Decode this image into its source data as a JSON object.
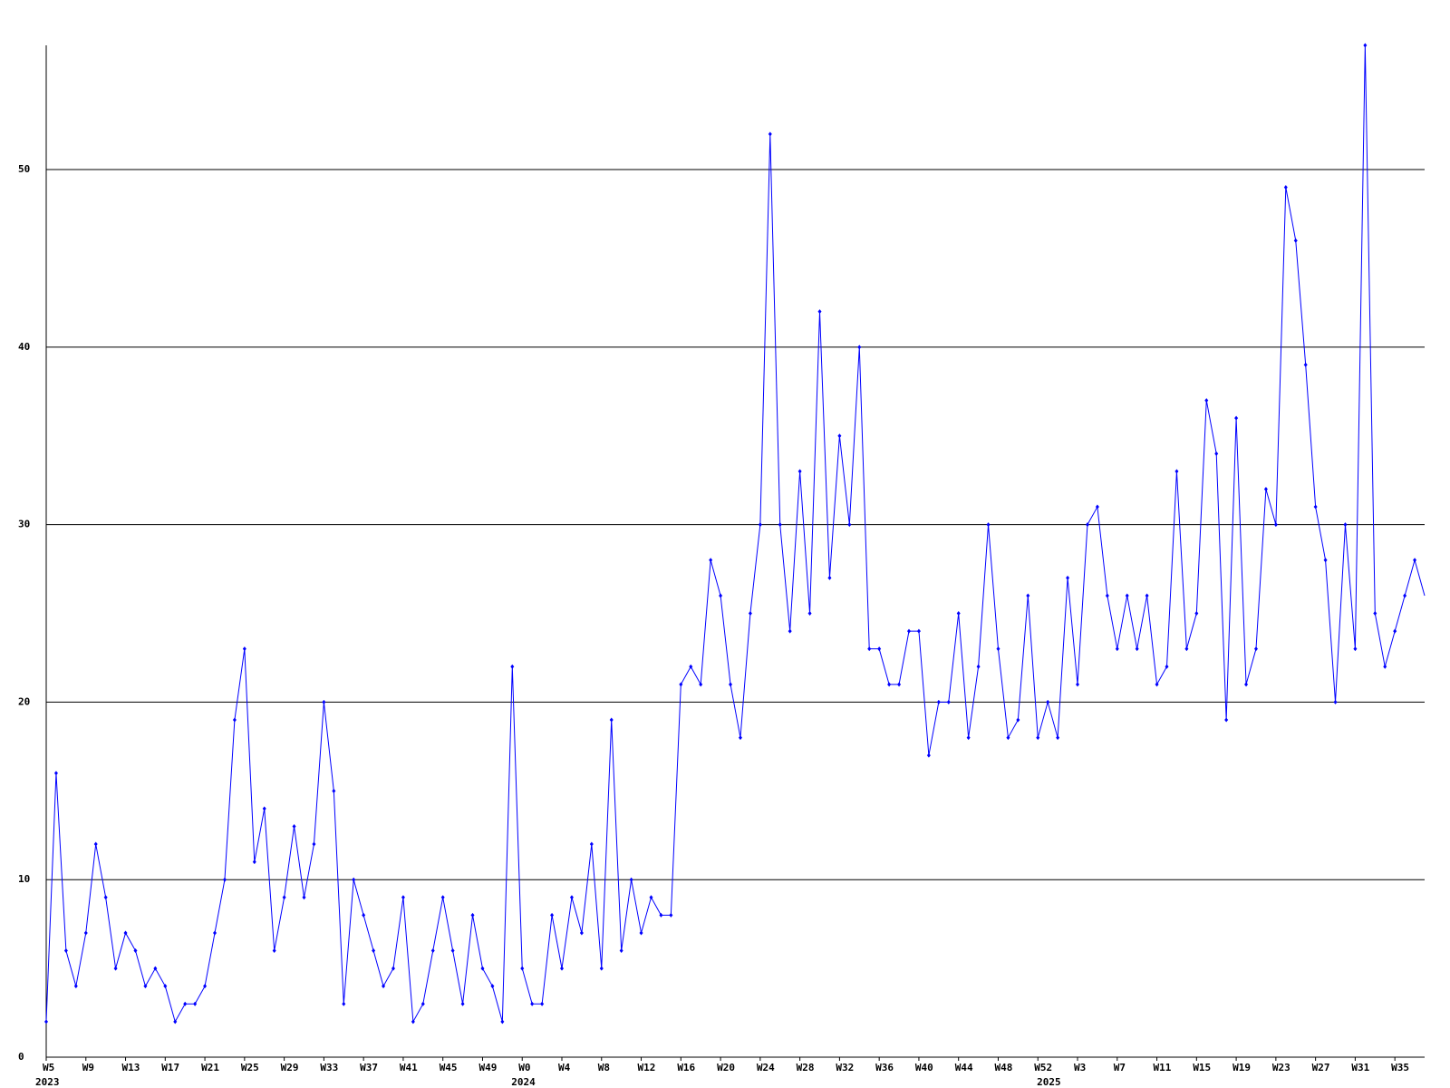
{
  "chart_data": {
    "type": "line",
    "categories": [
      "W5",
      null,
      null,
      null,
      "W9",
      null,
      null,
      null,
      "W13",
      null,
      null,
      null,
      "W17",
      null,
      null,
      null,
      "W21",
      null,
      null,
      null,
      "W25",
      null,
      null,
      null,
      "W29",
      null,
      null,
      null,
      "W33",
      null,
      null,
      null,
      "W37",
      null,
      null,
      null,
      "W41",
      null,
      null,
      null,
      "W45",
      null,
      null,
      null,
      "W49",
      null,
      null,
      null,
      "W0",
      null,
      null,
      null,
      "W4",
      null,
      null,
      null,
      "W8",
      null,
      null,
      null,
      "W12",
      null,
      null,
      null,
      "W16",
      null,
      null,
      null,
      "W20",
      null,
      null,
      null,
      "W24",
      null,
      null,
      null,
      "W28",
      null,
      null,
      null,
      "W32",
      null,
      null,
      null,
      "W36",
      null,
      null,
      null,
      "W40",
      null,
      null,
      null,
      "W44",
      null,
      null,
      null,
      "W48",
      null,
      null,
      null,
      "W52",
      null,
      null,
      null,
      "W3",
      null,
      null,
      null,
      "W7",
      null,
      null,
      null,
      "W11",
      null,
      null,
      null,
      "W15",
      null,
      null,
      null,
      "W19",
      null,
      null,
      null,
      "W23",
      null,
      null,
      null,
      "W27",
      null,
      null,
      null,
      "W31",
      null,
      null,
      null,
      "W35",
      null,
      null,
      null
    ],
    "years": [
      "2023",
      null,
      null,
      null,
      null,
      null,
      null,
      null,
      null,
      null,
      null,
      null,
      null,
      null,
      null,
      null,
      null,
      null,
      null,
      null,
      null,
      null,
      null,
      null,
      null,
      null,
      null,
      null,
      null,
      null,
      null,
      null,
      null,
      null,
      null,
      null,
      null,
      null,
      null,
      null,
      null,
      null,
      null,
      null,
      null,
      null,
      null,
      null,
      "2024",
      null,
      null,
      null,
      null,
      null,
      null,
      null,
      null,
      null,
      null,
      null,
      null,
      null,
      null,
      null,
      null,
      null,
      null,
      null,
      null,
      null,
      null,
      null,
      null,
      null,
      null,
      null,
      null,
      null,
      null,
      null,
      null,
      null,
      null,
      null,
      null,
      null,
      null,
      null,
      null,
      null,
      null,
      null,
      null,
      null,
      null,
      null,
      null,
      null,
      null,
      null,
      null,
      "2025",
      null,
      null,
      null,
      null,
      null,
      null,
      null,
      null,
      null,
      null,
      null,
      null,
      null,
      null,
      null,
      null,
      null,
      null,
      null,
      null,
      null,
      null,
      null,
      null,
      null,
      null,
      null,
      null,
      null,
      null,
      null,
      null,
      null,
      null,
      null,
      null,
      null
    ],
    "series": [
      {
        "color": "#0000ff",
        "values": [
          2,
          16,
          6,
          4,
          7,
          12,
          9,
          5,
          7,
          6,
          4,
          5,
          4,
          2,
          3,
          3,
          4,
          7,
          10,
          19,
          23,
          11,
          14,
          6,
          9,
          13,
          9,
          12,
          20,
          15,
          3,
          10,
          8,
          6,
          4,
          5,
          9,
          2,
          3,
          6,
          9,
          6,
          3,
          8,
          5,
          4,
          2,
          22,
          5,
          3,
          3,
          8,
          5,
          9,
          7,
          12,
          5,
          19,
          6,
          10,
          7,
          9,
          8,
          8,
          21,
          22,
          21,
          28,
          26,
          21,
          18,
          25,
          30,
          52,
          30,
          24,
          33,
          25,
          42,
          27,
          35,
          30,
          40,
          23,
          23,
          21,
          21,
          24,
          24,
          17,
          20,
          20,
          25,
          18,
          22,
          30,
          23,
          18,
          19,
          26,
          18,
          20,
          18,
          27,
          21,
          30,
          31,
          26,
          23,
          26,
          23,
          26,
          21,
          22,
          33,
          23,
          25,
          37,
          34,
          19,
          36,
          21,
          23,
          32,
          30,
          49,
          46,
          39,
          31,
          28,
          20,
          30,
          23,
          57,
          25,
          22,
          24,
          26,
          28,
          26
        ]
      }
    ],
    "ylim": [
      0,
      57
    ],
    "yticks": [
      0,
      10,
      20,
      30,
      40,
      50
    ],
    "grid": true
  }
}
